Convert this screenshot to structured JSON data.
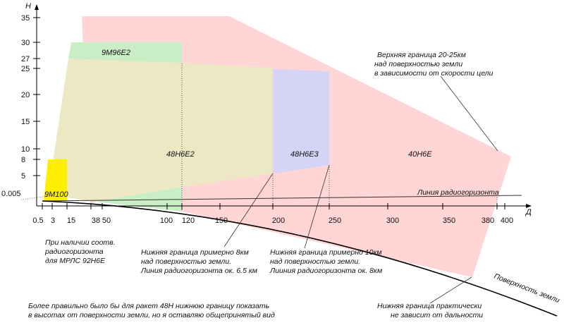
{
  "axes": {
    "y_label": "Н",
    "x_label": "Д",
    "y_ticks": [
      "35",
      "30",
      "27",
      "25",
      "20",
      "15",
      "10",
      "8",
      "5",
      "0.005"
    ],
    "x_ticks": [
      "0.5",
      "3",
      "15",
      "38",
      "50",
      "100",
      "120",
      "150",
      "200",
      "250",
      "300",
      "350",
      "380",
      "400"
    ]
  },
  "zones": {
    "z9m100": "9М100",
    "z9m96e2": "9М96Е2",
    "z48n6e2": "48Н6Е2",
    "z48n6e3": "48Н6Е3",
    "z40n6e": "40Н6Е"
  },
  "colors": {
    "pink_40n6e": "#ffd5d5",
    "beige_48n6e2": "#ece8c4",
    "blue_48n6e3": "#d5d4f7",
    "green_9m96e2": "#c9eec5",
    "yellow_9m100": "#ffee00"
  },
  "labels": {
    "radio_horizon_line": "Линия радиогоризонта",
    "earth_surface": "Поверхность земли",
    "upper_note": [
      "Верхняя граница 20-25км",
      "над поверхностью земли",
      "в зависимости от скорости цели"
    ],
    "radar_note": [
      "При наличии соотв.",
      "радиогоризонта",
      "для МРЛС 92Н6Е"
    ],
    "lower_8km_note": [
      "Нижняя граница примерно 8км",
      "над поверхностью земли.",
      "Линия радиогоризонта ок. 6.5 км"
    ],
    "lower_10km_note": [
      "Нижняя граница примерно 10км",
      "над поверхностью земли.",
      "Лииния радиогоризонта ок. 8км"
    ],
    "lower_any_note": [
      "Нижняя граница практически",
      "не зависит от дальности"
    ],
    "bottom_note": [
      "Более правильно было бы для ракет 48Н нижнюю границу показать",
      "в высотах от поверхности земли, но я оставляю общепринятый вид"
    ]
  }
}
